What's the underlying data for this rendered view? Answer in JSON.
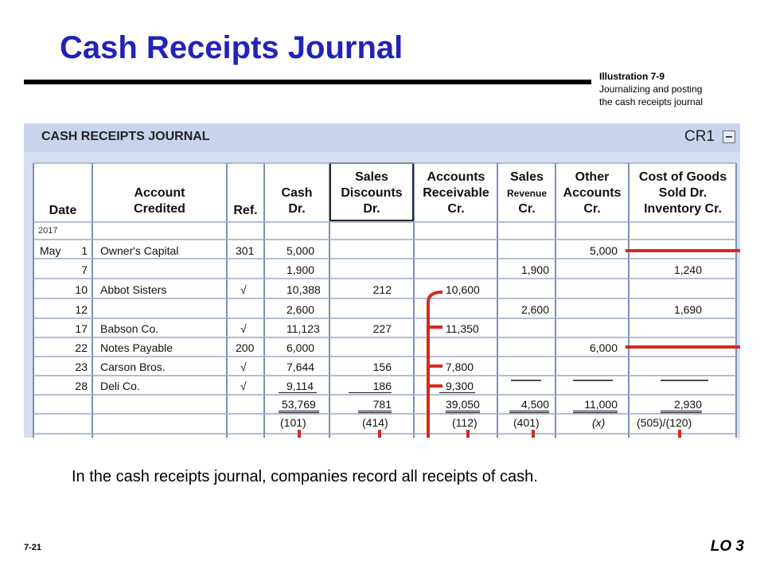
{
  "title": "Cash Receipts Journal",
  "illustration": {
    "label": "Illustration 7-9",
    "line1": "Journalizing and posting",
    "line2": "the cash receipts journal"
  },
  "journal": {
    "heading": "CASH RECEIPTS JOURNAL",
    "ref": "CR1",
    "year": "2017",
    "columns": [
      [
        "Date"
      ],
      [
        "Account",
        "Credited"
      ],
      [
        "Ref."
      ],
      [
        "Cash",
        "Dr."
      ],
      [
        "Sales",
        "Discounts",
        "Dr."
      ],
      [
        "Accounts",
        "Receivable",
        "Cr."
      ],
      [
        "Sales",
        "Revenue",
        "Cr."
      ],
      [
        "Other",
        "Accounts",
        "Cr."
      ],
      [
        "Cost of Goods",
        "Sold Dr.",
        "Inventory Cr."
      ]
    ],
    "rows": [
      {
        "month": "May",
        "day": "1",
        "account": "Owner's Capital",
        "ref": "301",
        "cash": "5,000",
        "disc": "",
        "ar": "",
        "sales": "",
        "other": "5,000",
        "cogs": ""
      },
      {
        "month": "",
        "day": "7",
        "account": "",
        "ref": "",
        "cash": "1,900",
        "disc": "",
        "ar": "",
        "sales": "1,900",
        "other": "",
        "cogs": "1,240"
      },
      {
        "month": "",
        "day": "10",
        "account": "Abbot Sisters",
        "ref": "√",
        "cash": "10,388",
        "disc": "212",
        "ar": "10,600",
        "sales": "",
        "other": "",
        "cogs": ""
      },
      {
        "month": "",
        "day": "12",
        "account": "",
        "ref": "",
        "cash": "2,600",
        "disc": "",
        "ar": "",
        "sales": "2,600",
        "other": "",
        "cogs": "1,690"
      },
      {
        "month": "",
        "day": "17",
        "account": "Babson Co.",
        "ref": "√",
        "cash": "11,123",
        "disc": "227",
        "ar": "11,350",
        "sales": "",
        "other": "",
        "cogs": ""
      },
      {
        "month": "",
        "day": "22",
        "account": "Notes Payable",
        "ref": "200",
        "cash": "6,000",
        "disc": "",
        "ar": "",
        "sales": "",
        "other": "6,000",
        "cogs": ""
      },
      {
        "month": "",
        "day": "23",
        "account": "Carson Bros.",
        "ref": "√",
        "cash": "7,644",
        "disc": "156",
        "ar": "7,800",
        "sales": "",
        "other": "",
        "cogs": ""
      },
      {
        "month": "",
        "day": "28",
        "account": "Deli Co.",
        "ref": "√",
        "cash": "9,114",
        "disc": "186",
        "ar": "9,300",
        "sales": "",
        "other": "",
        "cogs": ""
      }
    ],
    "totals": {
      "cash": "53,769",
      "disc": "781",
      "ar": "39,050",
      "sales": "4,500",
      "other": "11,000",
      "cogs": "2,930"
    },
    "posting_refs": {
      "cash": "(101)",
      "disc": "(414)",
      "ar": "(112)",
      "sales": "(401)",
      "other": "(x)",
      "cogs": "(505)/(120)"
    }
  },
  "caption": "In the cash receipts journal, companies record all receipts of cash.",
  "page_number": "7-21",
  "lo": "LO 3",
  "colors": {
    "title": "#1f23b8",
    "journal_bg": "#d6dff0",
    "posting_line": "#d42a1e"
  }
}
